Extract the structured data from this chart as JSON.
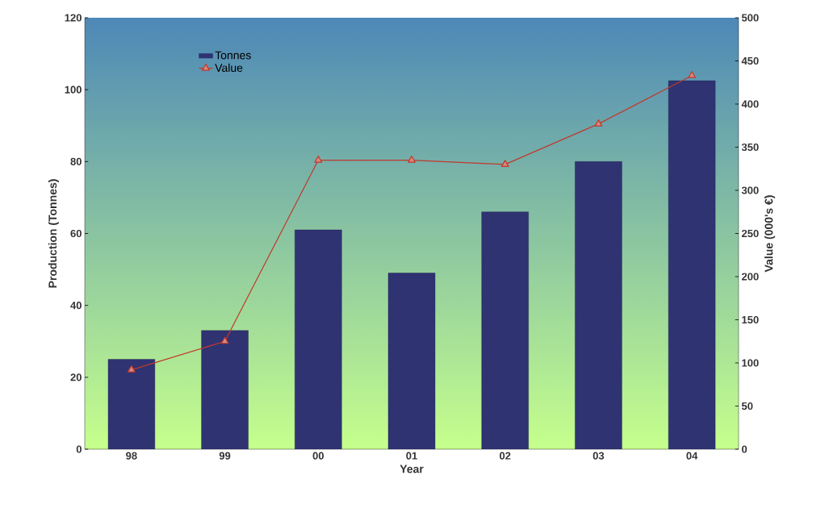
{
  "chart_data": {
    "type": "bar",
    "xlabel": "Year",
    "ylabel": "Production (Tonnes)",
    "y2label": "Value (000's €)",
    "categories": [
      "98",
      "99",
      "00",
      "01",
      "02",
      "03",
      "04"
    ],
    "series": [
      {
        "name": "Tonnes",
        "color": "#2f3372",
        "values": [
          25,
          33,
          61,
          49,
          66,
          80,
          102.5
        ]
      },
      {
        "name": "Value",
        "type": "line",
        "axis": "y2",
        "color": "#c0392b",
        "marker": "triangle",
        "values": [
          92,
          125,
          335,
          335,
          330,
          377,
          433
        ]
      }
    ],
    "ylim": [
      0,
      120
    ],
    "yticks": [
      0,
      20,
      40,
      60,
      80,
      100,
      120
    ],
    "y2lim": [
      0,
      500
    ],
    "y2ticks": [
      0,
      50,
      100,
      150,
      200,
      250,
      300,
      350,
      400,
      450,
      500
    ],
    "grid": false,
    "legend": "top left"
  }
}
